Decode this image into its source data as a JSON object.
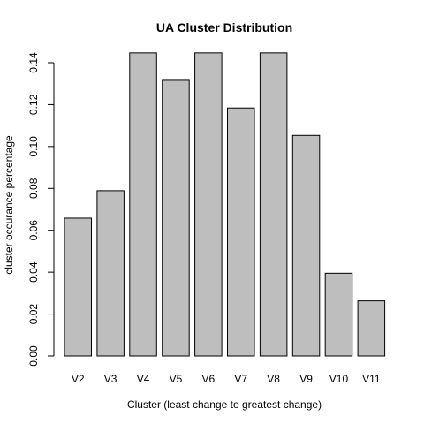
{
  "chart_data": {
    "type": "bar",
    "title": "UA Cluster Distribution",
    "xlabel": "Cluster (least change to greatest change)",
    "ylabel": "cluster occurance percentage",
    "categories": [
      "V2",
      "V3",
      "V4",
      "V5",
      "V6",
      "V7",
      "V8",
      "V9",
      "V10",
      "V11"
    ],
    "values": [
      0.0658,
      0.0789,
      0.1447,
      0.1316,
      0.1447,
      0.1184,
      0.1447,
      0.1053,
      0.0395,
      0.0263
    ],
    "ylim": [
      0,
      0.14
    ],
    "yticks": [
      "0.00",
      "0.02",
      "0.04",
      "0.06",
      "0.08",
      "0.10",
      "0.12",
      "0.14"
    ],
    "bar_color": "#bebebe",
    "grid": false
  }
}
